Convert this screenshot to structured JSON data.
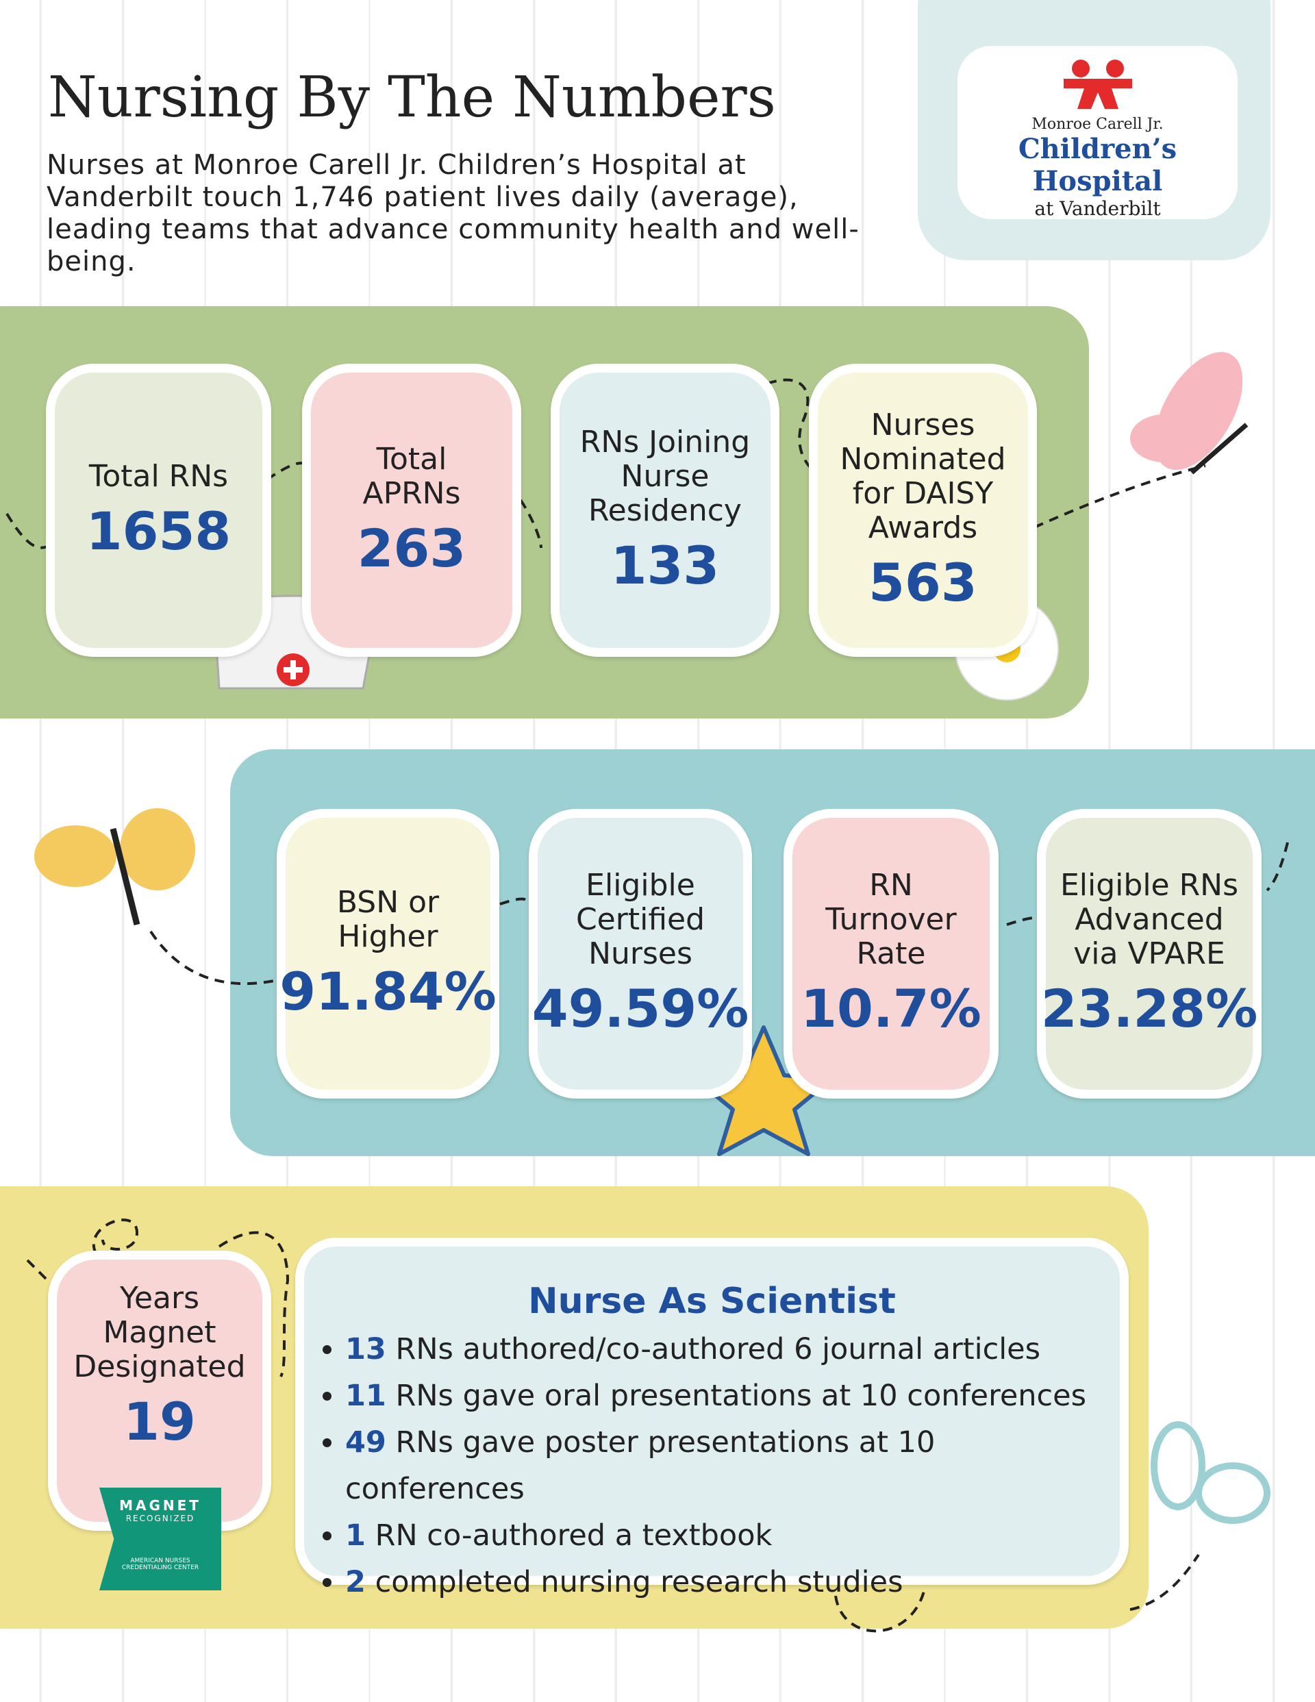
{
  "header": {
    "title": "Nursing By The Numbers",
    "intro": "Nurses at Monroe Carell Jr. Children’s Hospital at Vanderbilt touch 1,746 patient lives daily (average), leading teams that advance community health and well-being."
  },
  "logo": {
    "top": "Monroe Carell Jr.",
    "name": "Children’s Hospital",
    "bottom": "at Vanderbilt"
  },
  "workforce": [
    {
      "label": "Total RNs",
      "value": "1658"
    },
    {
      "label": "Total APRNs",
      "value": "263"
    },
    {
      "label": "RNs Joining Nurse Residency",
      "value": "133"
    },
    {
      "label": "Nurses Nominated for DAISY Awards",
      "value": "563"
    }
  ],
  "rates": [
    {
      "label": "BSN or Higher",
      "value": "91.84%"
    },
    {
      "label": "Eligible Certified Nurses",
      "value": "49.59%"
    },
    {
      "label": "RN Turnover Rate",
      "value": "10.7%"
    },
    {
      "label": "Eligible RNs Advanced via VPARE",
      "value": "23.28%"
    }
  ],
  "magnet": {
    "label": "Years Magnet Designated",
    "value": "19",
    "badge": {
      "title": "MAGNET",
      "subtitle": "RECOGNIZED",
      "org": "AMERICAN NURSES CREDENTIALING CENTER"
    }
  },
  "scientist": {
    "title": "Nurse As Scientist",
    "items": [
      {
        "number": "13",
        "text": "RNs authored/co-authored 6 journal articles"
      },
      {
        "number": "11",
        "text": "RNs gave oral presentations at 10 conferences"
      },
      {
        "number": "49",
        "text": "RNs gave poster presentations at 10 conferences"
      },
      {
        "number": "1",
        "text": "RN co-authored a textbook"
      },
      {
        "number": "2",
        "text": "completed nursing research studies"
      }
    ]
  }
}
